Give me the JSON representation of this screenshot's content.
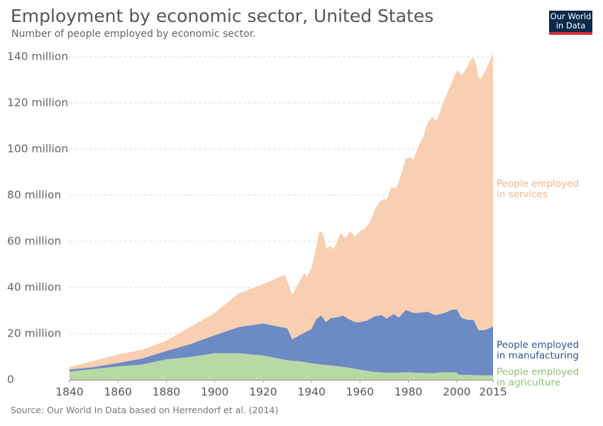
{
  "header": {
    "title": "Employment by economic sector, United States",
    "subtitle": "Number of people employed by economic sector."
  },
  "logo": {
    "line1": "Our World",
    "line2": "in Data"
  },
  "source": "Source: Our World In Data based on Herrendorf et al. (2014)",
  "colors": {
    "services": "#f8cfb0",
    "manufacturing": "#6c8ac4",
    "agriculture": "#b8d8a5",
    "services_label": "#f0b48a",
    "manufacturing_label": "#2f5597",
    "agriculture_label": "#8fc27a"
  },
  "chart_data": {
    "type": "area",
    "stacked": true,
    "title": "Employment by economic sector, United States",
    "xlim": [
      1840,
      2015
    ],
    "ylim": [
      0,
      140000000
    ],
    "grid": true,
    "x_ticks": [
      1840,
      1860,
      1880,
      1900,
      1920,
      1940,
      1960,
      1980,
      2000,
      2015
    ],
    "y_ticks": [
      {
        "value": 0,
        "label": "0"
      },
      {
        "value": 20000000,
        "label": "20 million"
      },
      {
        "value": 40000000,
        "label": "40 million"
      },
      {
        "value": 60000000,
        "label": "60 million"
      },
      {
        "value": 80000000,
        "label": "80 million"
      },
      {
        "value": 100000000,
        "label": "100 million"
      },
      {
        "value": 120000000,
        "label": "120 million"
      },
      {
        "value": 140000000,
        "label": "140 million"
      }
    ],
    "series": [
      {
        "name": "People employed in agriculture",
        "label_lines": [
          "People employed",
          "in agriculture"
        ],
        "points": [
          [
            1840,
            3.6
          ],
          [
            1860,
            5.8
          ],
          [
            1870,
            6.6
          ],
          [
            1880,
            8.9
          ],
          [
            1890,
            9.9
          ],
          [
            1900,
            11.5
          ],
          [
            1910,
            11.5
          ],
          [
            1920,
            10.5
          ],
          [
            1930,
            8.5
          ],
          [
            1935,
            8.0
          ],
          [
            1940,
            7.2
          ],
          [
            1945,
            6.5
          ],
          [
            1950,
            6.0
          ],
          [
            1955,
            5.3
          ],
          [
            1960,
            4.4
          ],
          [
            1965,
            3.5
          ],
          [
            1970,
            3.1
          ],
          [
            1975,
            3.1
          ],
          [
            1980,
            3.2
          ],
          [
            1985,
            3.0
          ],
          [
            1990,
            2.9
          ],
          [
            1995,
            3.3
          ],
          [
            2000,
            3.1
          ],
          [
            2001,
            2.2
          ],
          [
            2005,
            2.1
          ],
          [
            2010,
            1.9
          ],
          [
            2015,
            2.0
          ]
        ]
      },
      {
        "name": "People employed in manufacturing",
        "label_lines": [
          "People employed",
          "in manufacturing"
        ],
        "points": [
          [
            1840,
            4.5
          ],
          [
            1850,
            5.5
          ],
          [
            1860,
            7.3
          ],
          [
            1870,
            9.2
          ],
          [
            1880,
            12.5
          ],
          [
            1890,
            15.5
          ],
          [
            1900,
            19.3
          ],
          [
            1910,
            22.9
          ],
          [
            1920,
            24.4
          ],
          [
            1930,
            22.3
          ],
          [
            1932,
            17.5
          ],
          [
            1935,
            19.3
          ],
          [
            1940,
            22.0
          ],
          [
            1942,
            26.4
          ],
          [
            1944,
            27.8
          ],
          [
            1946,
            25.0
          ],
          [
            1948,
            26.8
          ],
          [
            1950,
            27.0
          ],
          [
            1953,
            27.8
          ],
          [
            1955,
            26.5
          ],
          [
            1958,
            25.0
          ],
          [
            1960,
            25.0
          ],
          [
            1963,
            25.7
          ],
          [
            1966,
            27.5
          ],
          [
            1969,
            28.0
          ],
          [
            1971,
            26.5
          ],
          [
            1974,
            28.5
          ],
          [
            1976,
            27.0
          ],
          [
            1979,
            30.3
          ],
          [
            1982,
            29.0
          ],
          [
            1984,
            29.0
          ],
          [
            1988,
            29.5
          ],
          [
            1991,
            28.0
          ],
          [
            1995,
            29.0
          ],
          [
            1998,
            30.4
          ],
          [
            2000,
            30.5
          ],
          [
            2002,
            26.8
          ],
          [
            2005,
            25.9
          ],
          [
            2007,
            26.0
          ],
          [
            2009,
            21.4
          ],
          [
            2012,
            21.7
          ],
          [
            2015,
            23.1
          ]
        ]
      },
      {
        "name": "People employed in services",
        "label_lines": [
          "People employed",
          "in services"
        ],
        "points": [
          [
            1840,
            5.5
          ],
          [
            1850,
            8.3
          ],
          [
            1860,
            11.0
          ],
          [
            1870,
            13.0
          ],
          [
            1880,
            17.0
          ],
          [
            1890,
            23.0
          ],
          [
            1900,
            29.0
          ],
          [
            1910,
            37.5
          ],
          [
            1920,
            41.5
          ],
          [
            1929,
            45.5
          ],
          [
            1932,
            37.0
          ],
          [
            1935,
            42.5
          ],
          [
            1937,
            46.5
          ],
          [
            1938,
            44.5
          ],
          [
            1940,
            48.5
          ],
          [
            1942,
            58.0
          ],
          [
            1943,
            63.5
          ],
          [
            1944,
            64.5
          ],
          [
            1945,
            62.5
          ],
          [
            1946,
            57.0
          ],
          [
            1948,
            58.0
          ],
          [
            1949,
            56.5
          ],
          [
            1950,
            58.5
          ],
          [
            1952,
            63.5
          ],
          [
            1954,
            61.5
          ],
          [
            1956,
            64.5
          ],
          [
            1958,
            62.0
          ],
          [
            1960,
            64.5
          ],
          [
            1962,
            65.5
          ],
          [
            1964,
            68.0
          ],
          [
            1966,
            73.5
          ],
          [
            1968,
            77.0
          ],
          [
            1970,
            78.5
          ],
          [
            1971,
            78.0
          ],
          [
            1973,
            83.5
          ],
          [
            1975,
            83.0
          ],
          [
            1977,
            89.0
          ],
          [
            1979,
            96.0
          ],
          [
            1981,
            96.5
          ],
          [
            1982,
            95.0
          ],
          [
            1984,
            101.0
          ],
          [
            1986,
            105.0
          ],
          [
            1988,
            111.5
          ],
          [
            1990,
            114.0
          ],
          [
            1991,
            112.5
          ],
          [
            1992,
            113.0
          ],
          [
            1994,
            119.0
          ],
          [
            1996,
            124.0
          ],
          [
            1998,
            129.0
          ],
          [
            2000,
            134.0
          ],
          [
            2001,
            133.5
          ],
          [
            2002,
            132.0
          ],
          [
            2004,
            135.0
          ],
          [
            2006,
            139.0
          ],
          [
            2007,
            139.5
          ],
          [
            2008,
            137.0
          ],
          [
            2009,
            131.0
          ],
          [
            2010,
            130.5
          ],
          [
            2012,
            134.5
          ],
          [
            2014,
            139.0
          ],
          [
            2015,
            142.0
          ]
        ]
      }
    ],
    "value_unit": "million"
  }
}
